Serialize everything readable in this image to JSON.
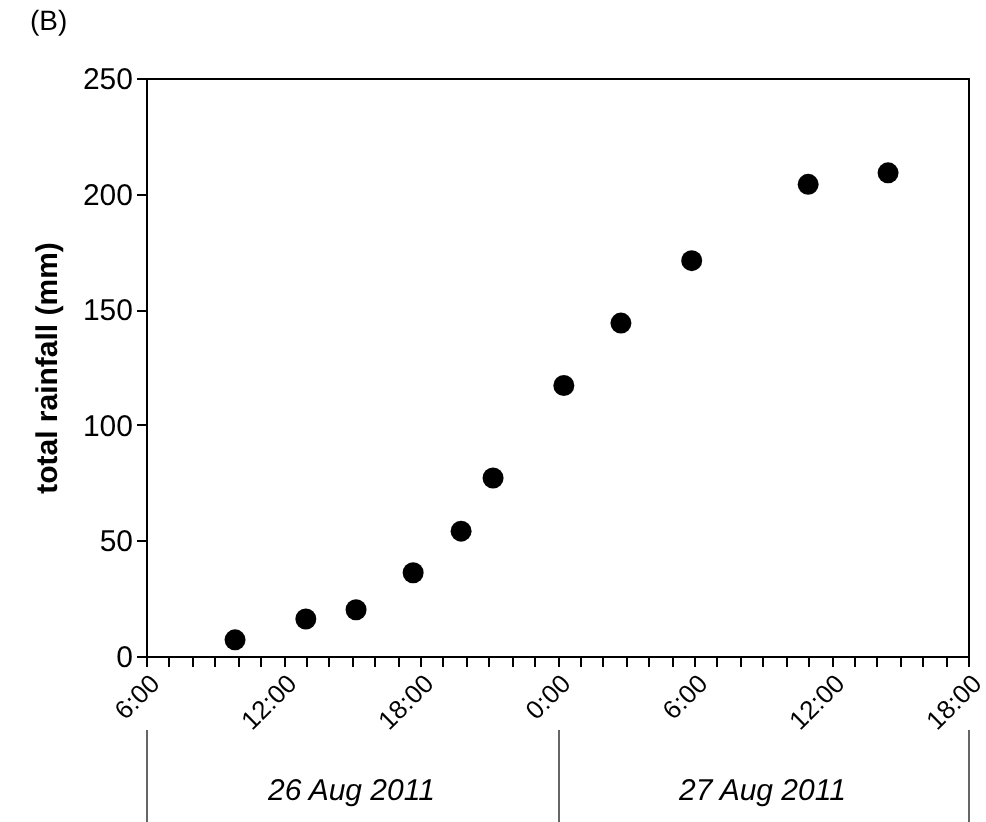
{
  "chart_data": {
    "type": "scatter",
    "title": "(B)",
    "ylabel": "total rainfall (mm)",
    "x": [
      "2011-08-26T09:54",
      "2011-08-26T13:00",
      "2011-08-26T15:12",
      "2011-08-26T17:42",
      "2011-08-26T19:48",
      "2011-08-26T21:12",
      "2011-08-27T00:18",
      "2011-08-27T02:48",
      "2011-08-27T05:54",
      "2011-08-27T11:00",
      "2011-08-27T14:30"
    ],
    "series": [
      {
        "color": "#000000",
        "values": [
          7,
          16,
          20,
          36,
          54,
          77,
          117,
          144,
          171,
          204,
          209
        ]
      }
    ],
    "marker": "circle",
    "xlim": [
      "2011-08-26T06:00",
      "2011-08-27T18:00"
    ],
    "xticks": [
      {
        "value": "2011-08-26T06:00",
        "label": "6:00"
      },
      {
        "value": "2011-08-26T07:00",
        "label": null
      },
      {
        "value": "2011-08-26T08:00",
        "label": null
      },
      {
        "value": "2011-08-26T09:00",
        "label": null
      },
      {
        "value": "2011-08-26T10:00",
        "label": null
      },
      {
        "value": "2011-08-26T11:00",
        "label": null
      },
      {
        "value": "2011-08-26T12:00",
        "label": "12:00"
      },
      {
        "value": "2011-08-26T13:00",
        "label": null
      },
      {
        "value": "2011-08-26T14:00",
        "label": null
      },
      {
        "value": "2011-08-26T15:00",
        "label": null
      },
      {
        "value": "2011-08-26T16:00",
        "label": null
      },
      {
        "value": "2011-08-26T17:00",
        "label": null
      },
      {
        "value": "2011-08-26T18:00",
        "label": "18:00"
      },
      {
        "value": "2011-08-26T19:00",
        "label": null
      },
      {
        "value": "2011-08-26T20:00",
        "label": null
      },
      {
        "value": "2011-08-26T21:00",
        "label": null
      },
      {
        "value": "2011-08-26T22:00",
        "label": null
      },
      {
        "value": "2011-08-26T23:00",
        "label": null
      },
      {
        "value": "2011-08-27T00:00",
        "label": "0:00"
      },
      {
        "value": "2011-08-27T01:00",
        "label": null
      },
      {
        "value": "2011-08-27T02:00",
        "label": null
      },
      {
        "value": "2011-08-27T03:00",
        "label": null
      },
      {
        "value": "2011-08-27T04:00",
        "label": null
      },
      {
        "value": "2011-08-27T05:00",
        "label": null
      },
      {
        "value": "2011-08-27T06:00",
        "label": "6:00"
      },
      {
        "value": "2011-08-27T07:00",
        "label": null
      },
      {
        "value": "2011-08-27T08:00",
        "label": null
      },
      {
        "value": "2011-08-27T09:00",
        "label": null
      },
      {
        "value": "2011-08-27T10:00",
        "label": null
      },
      {
        "value": "2011-08-27T11:00",
        "label": null
      },
      {
        "value": "2011-08-27T12:00",
        "label": "12:00"
      },
      {
        "value": "2011-08-27T13:00",
        "label": null
      },
      {
        "value": "2011-08-27T14:00",
        "label": null
      },
      {
        "value": "2011-08-27T15:00",
        "label": null
      },
      {
        "value": "2011-08-27T16:00",
        "label": null
      },
      {
        "value": "2011-08-27T17:00",
        "label": null
      },
      {
        "value": "2011-08-27T18:00",
        "label": "18:00"
      }
    ],
    "ylim": [
      0,
      250
    ],
    "yticks": [
      0,
      50,
      100,
      150,
      200,
      250
    ],
    "annotations": [
      "26 Aug 2011",
      "27 Aug 2011"
    ]
  }
}
